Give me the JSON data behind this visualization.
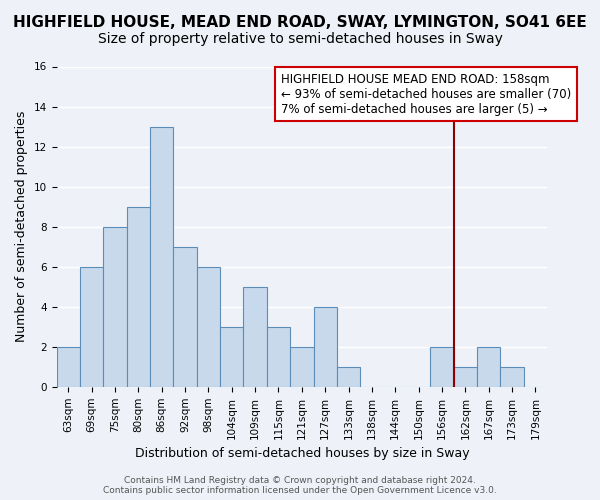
{
  "title": "HIGHFIELD HOUSE, MEAD END ROAD, SWAY, LYMINGTON, SO41 6EE",
  "subtitle": "Size of property relative to semi-detached houses in Sway",
  "xlabel": "Distribution of semi-detached houses by size in Sway",
  "ylabel": "Number of semi-detached properties",
  "bar_labels": [
    "63sqm",
    "69sqm",
    "75sqm",
    "80sqm",
    "86sqm",
    "92sqm",
    "98sqm",
    "104sqm",
    "109sqm",
    "115sqm",
    "121sqm",
    "127sqm",
    "133sqm",
    "138sqm",
    "144sqm",
    "150sqm",
    "156sqm",
    "162sqm",
    "167sqm",
    "173sqm",
    "179sqm"
  ],
  "bar_heights": [
    2,
    6,
    8,
    9,
    13,
    7,
    6,
    3,
    5,
    3,
    2,
    4,
    1,
    0,
    0,
    0,
    2,
    1,
    2,
    1,
    0
  ],
  "bar_color": "#c9d9ec",
  "bar_edgecolor": "#5b8db8",
  "background_color": "#eef2f8",
  "grid_color": "#ffffff",
  "vline_x": 16.5,
  "vline_color": "#8b0000",
  "ylim": [
    0,
    16
  ],
  "yticks": [
    0,
    2,
    4,
    6,
    8,
    10,
    12,
    14,
    16
  ],
  "annotation_title": "HIGHFIELD HOUSE MEAD END ROAD: 158sqm",
  "annotation_line1": "← 93% of semi-detached houses are smaller (70)",
  "annotation_line2": "7% of semi-detached houses are larger (5) →",
  "annotation_box_color": "#ffffff",
  "annotation_box_edgecolor": "#cc0000",
  "footer_line1": "Contains HM Land Registry data © Crown copyright and database right 2024.",
  "footer_line2": "Contains public sector information licensed under the Open Government Licence v3.0.",
  "title_fontsize": 11,
  "subtitle_fontsize": 10,
  "ylabel_fontsize": 9,
  "xlabel_fontsize": 9,
  "tick_fontsize": 7.5,
  "annotation_fontsize": 8.5,
  "footer_fontsize": 6.5
}
